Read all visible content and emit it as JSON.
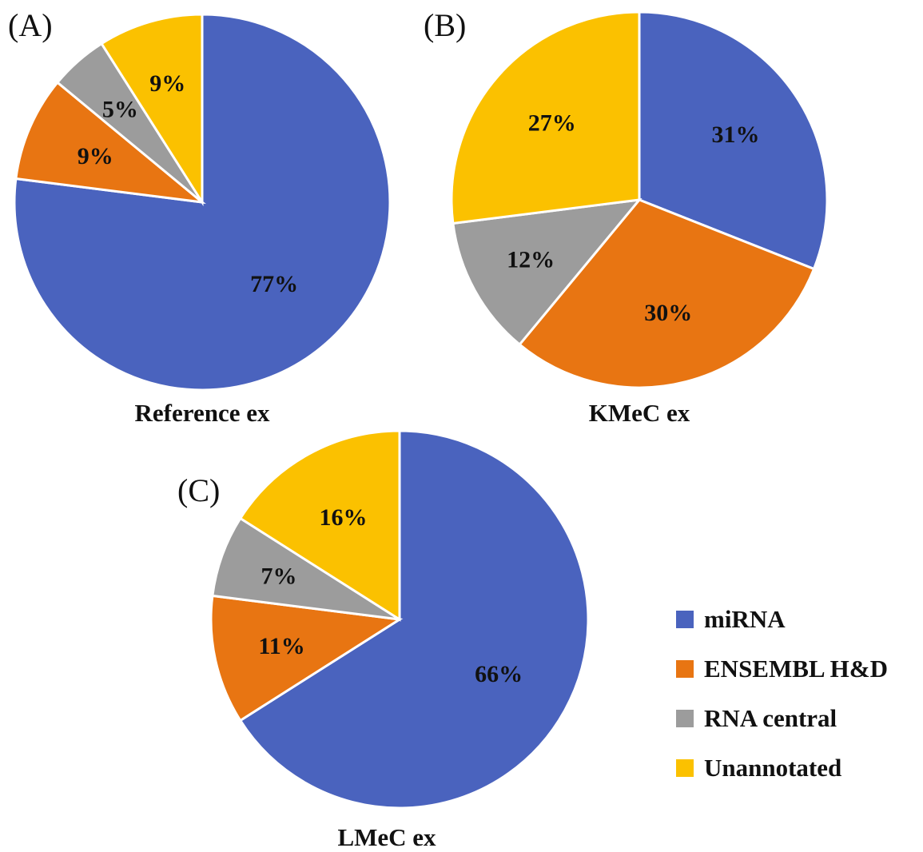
{
  "chart_data": [
    {
      "type": "pie",
      "panel": "(A)",
      "title": "Reference ex",
      "categories": [
        "miRNA",
        "ENSEMBL H&D",
        "RNA central",
        "Unannotated"
      ],
      "values": [
        77,
        9,
        5,
        9
      ],
      "labels": [
        "77%",
        "9%",
        "5%",
        "9%"
      ]
    },
    {
      "type": "pie",
      "panel": "(B)",
      "title": "KMeC ex",
      "categories": [
        "miRNA",
        "ENSEMBL H&D",
        "RNA central",
        "Unannotated"
      ],
      "values": [
        31,
        30,
        12,
        27
      ],
      "labels": [
        "31%",
        "30%",
        "12%",
        "27%"
      ]
    },
    {
      "type": "pie",
      "panel": "(C)",
      "title": "LMeC ex",
      "categories": [
        "miRNA",
        "ENSEMBL H&D",
        "RNA central",
        "Unannotated"
      ],
      "values": [
        66,
        11,
        7,
        16
      ],
      "labels": [
        "66%",
        "11%",
        "7%",
        "16%"
      ]
    }
  ],
  "legend": {
    "items": [
      {
        "label": "miRNA",
        "color": "#4A63BE"
      },
      {
        "label": "ENSEMBL H&D",
        "color": "#E87512"
      },
      {
        "label": "RNA central",
        "color": "#9C9C9C"
      },
      {
        "label": "Unannotated",
        "color": "#FBC100"
      }
    ]
  }
}
